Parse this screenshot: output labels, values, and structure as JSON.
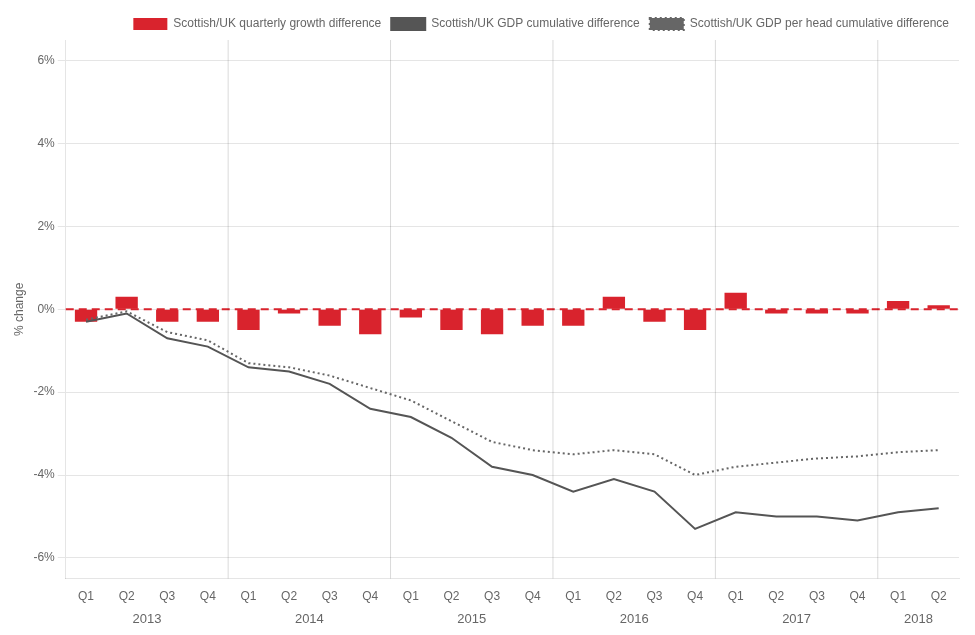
{
  "chart_data": {
    "type": "bar",
    "y_label": "% change",
    "categories": [
      "Q1",
      "Q2",
      "Q3",
      "Q4",
      "Q1",
      "Q2",
      "Q3",
      "Q4",
      "Q1",
      "Q2",
      "Q3",
      "Q4",
      "Q1",
      "Q2",
      "Q3",
      "Q4",
      "Q1",
      "Q2",
      "Q3",
      "Q4",
      "Q1",
      "Q2"
    ],
    "annotations": [
      "2013",
      "2014",
      "2015",
      "2016",
      "2017",
      "2018"
    ],
    "series": [
      {
        "name": "Scottish/UK quarterly growth difference",
        "type": "bar",
        "color": "#d9232d",
        "values": [
          -0.3,
          0.3,
          -0.3,
          -0.3,
          -0.5,
          -0.1,
          -0.4,
          -0.6,
          -0.2,
          -0.5,
          -0.6,
          -0.4,
          -0.4,
          0.3,
          -0.3,
          -0.5,
          0.4,
          -0.1,
          -0.1,
          -0.1,
          0.2,
          0.1
        ]
      },
      {
        "name": "Scottish/UK GDP cumulative difference",
        "type": "line",
        "color": "#555555",
        "line_style": "solid",
        "marker": "none",
        "values": [
          -0.3,
          -0.1,
          -0.7,
          -0.9,
          -1.4,
          -1.5,
          -1.8,
          -2.4,
          -2.6,
          -3.1,
          -3.8,
          -4.0,
          -4.4,
          -4.1,
          -4.4,
          -5.3,
          -4.9,
          -5.0,
          -5.0,
          -5.1,
          -4.9,
          -4.8
        ]
      },
      {
        "name": "Scottish/UK GDP per head cumulative difference",
        "type": "line",
        "color": "#666666",
        "line_style": "dotted",
        "marker": "none",
        "values": [
          -0.25,
          -0.05,
          -0.55,
          -0.75,
          -1.3,
          -1.4,
          -1.6,
          -1.9,
          -2.2,
          -2.7,
          -3.2,
          -3.4,
          -3.5,
          -3.4,
          -3.5,
          -4.0,
          -3.8,
          -3.7,
          -3.6,
          -3.55,
          -3.45,
          -3.4
        ]
      }
    ],
    "ylim": [
      -6.5,
      6.5
    ],
    "yticks": [
      {
        "value": -6,
        "label": "-6%"
      },
      {
        "value": -4,
        "label": "-4%"
      },
      {
        "value": -2,
        "label": "-2%"
      },
      {
        "value": 0,
        "label": "0%"
      },
      {
        "value": 2,
        "label": "2%"
      },
      {
        "value": 4,
        "label": "4%"
      },
      {
        "value": 6,
        "label": "6%"
      }
    ],
    "grid": true,
    "legend": "upper right"
  }
}
